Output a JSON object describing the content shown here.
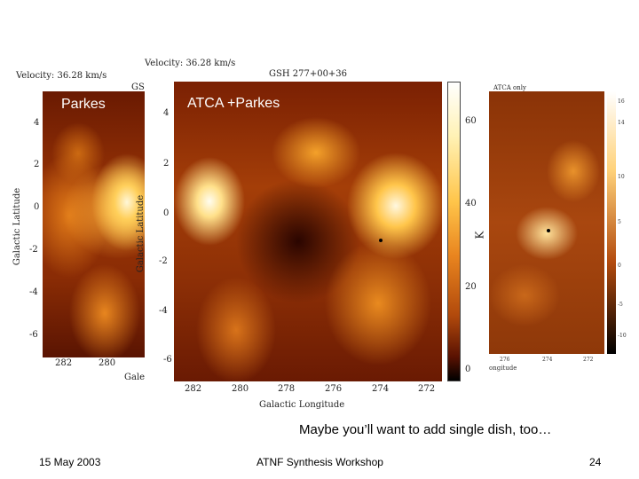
{
  "parkes_panel": {
    "caption": "Parkes",
    "velocity_text": "Velocity: 36.28 km/s",
    "corner_label": "GS",
    "ylabel": "Galactic Latitude",
    "y_ticks": [
      "4",
      "2",
      "0",
      "-2",
      "-4",
      "-6"
    ],
    "x_ticks": [
      "282",
      "280"
    ],
    "x_partial_label": "Gale"
  },
  "combined_panel": {
    "caption": "ATCA +Parkes",
    "velocity_text": "Velocity: 36.28 km/s",
    "title": "GSH 277+00+36",
    "ylabel": "Galactic Latitude",
    "xlabel": "Galactic Longitude",
    "y_ticks": [
      "4",
      "2",
      "0",
      "-2",
      "-4",
      "-6"
    ],
    "x_ticks": [
      "282",
      "280",
      "278",
      "276",
      "274",
      "272"
    ]
  },
  "colorbar": {
    "unit": "K",
    "ticks": [
      "60",
      "40",
      "20",
      "0"
    ]
  },
  "atca_panel": {
    "caption": "ATCA only",
    "x_ticks": [
      "276",
      "274",
      "272"
    ],
    "x_partial_label": "ongitude",
    "bar_ticks": [
      "16",
      "14",
      "10",
      "5",
      "0",
      "-5",
      "-10"
    ]
  },
  "slide": {
    "caption": "Maybe you’ll want to add single dish, too…",
    "date": "15 May 2003",
    "event": "ATNF Synthesis Workshop",
    "page_number": "24"
  }
}
